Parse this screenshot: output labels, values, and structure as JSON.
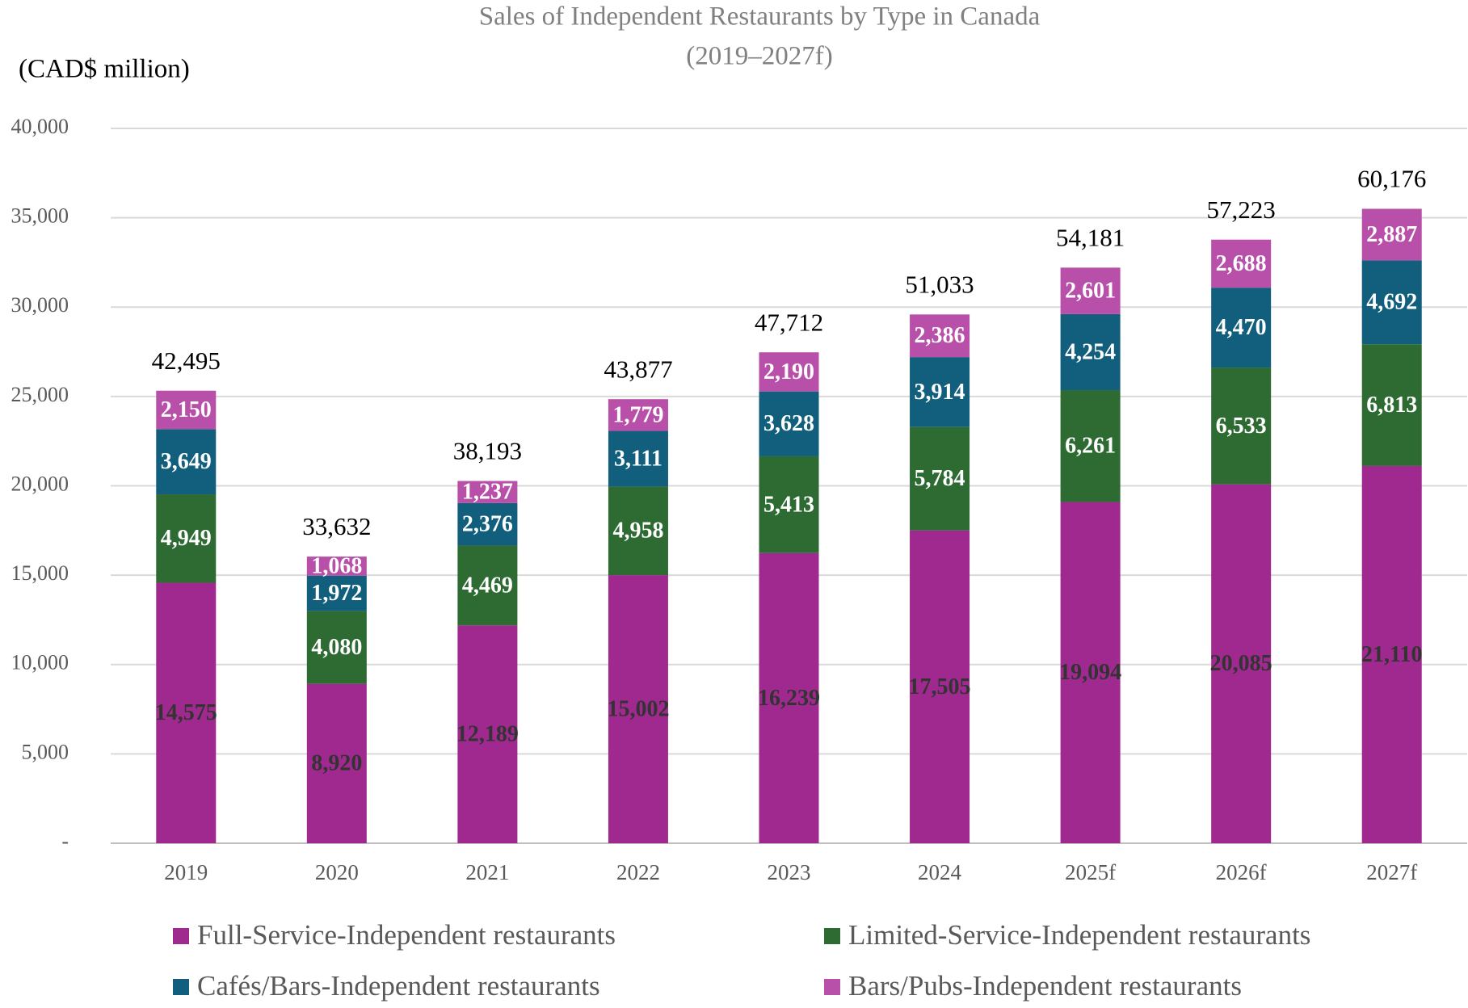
{
  "chart_data": {
    "type": "stacked_bar",
    "title": "Sales of Independent Restaurants by Type in Canada",
    "subtitle": "(2019–2027f)",
    "y_label": "(CAD$ million)",
    "categories": [
      "2019",
      "2020",
      "2021",
      "2022",
      "2023",
      "2024",
      "2025f",
      "2026f",
      "2027f"
    ],
    "ylim": [
      0,
      40000
    ],
    "yticks": [
      {
        "value": 0,
        "label": "-"
      },
      {
        "value": 5000,
        "label": "5,000"
      },
      {
        "value": 10000,
        "label": "10,000"
      },
      {
        "value": 15000,
        "label": "15,000"
      },
      {
        "value": 20000,
        "label": "20,000"
      },
      {
        "value": 25000,
        "label": "25,000"
      },
      {
        "value": 30000,
        "label": "30,000"
      },
      {
        "value": 35000,
        "label": "35,000"
      },
      {
        "value": 40000,
        "label": "40,000"
      }
    ],
    "grid": true,
    "series": [
      {
        "name": "Full-Service-Independent restaurants",
        "color": "#a0298f",
        "label_color": "#333333",
        "values": [
          14575,
          8920,
          12189,
          15002,
          16239,
          17505,
          19094,
          20085,
          21110
        ],
        "value_labels": [
          "14,575",
          "8,920",
          "12,189",
          "15,002",
          "16,239",
          "17,505",
          "19,094",
          "20,085",
          "21,110"
        ]
      },
      {
        "name": "Limited-Service-Independent restaurants",
        "color": "#2e6b32",
        "label_color": "#ffffff",
        "values": [
          4949,
          4080,
          4469,
          4958,
          5413,
          5784,
          6261,
          6533,
          6813
        ],
        "value_labels": [
          "4,949",
          "4,080",
          "4,469",
          "4,958",
          "5,413",
          "5,784",
          "6,261",
          "6,533",
          "6,813"
        ]
      },
      {
        "name": "Cafés/Bars-Independent restaurants",
        "color": "#115f7c",
        "label_color": "#ffffff",
        "values": [
          3649,
          1972,
          2376,
          3111,
          3628,
          3914,
          4254,
          4470,
          4692
        ],
        "value_labels": [
          "3,649",
          "1,972",
          "2,376",
          "3,111",
          "3,628",
          "3,914",
          "4,254",
          "4,470",
          "4,692"
        ]
      },
      {
        "name": "Bars/Pubs-Independent restaurants",
        "color": "#b84fa8",
        "label_color": "#ffffff",
        "values": [
          2150,
          1068,
          1237,
          1779,
          2190,
          2386,
          2601,
          2688,
          2887
        ],
        "value_labels": [
          "2,150",
          "1,068",
          "1,237",
          "1,779",
          "2,190",
          "2,386",
          "2,601",
          "2,688",
          "2,887"
        ]
      }
    ],
    "totals": {
      "values": [
        42495,
        33632,
        38193,
        43877,
        47712,
        51033,
        54181,
        57223,
        60176
      ],
      "value_labels": [
        "42,495",
        "33,632",
        "38,193",
        "43,877",
        "47,712",
        "51,033",
        "54,181",
        "57,223",
        "60,176"
      ]
    }
  }
}
